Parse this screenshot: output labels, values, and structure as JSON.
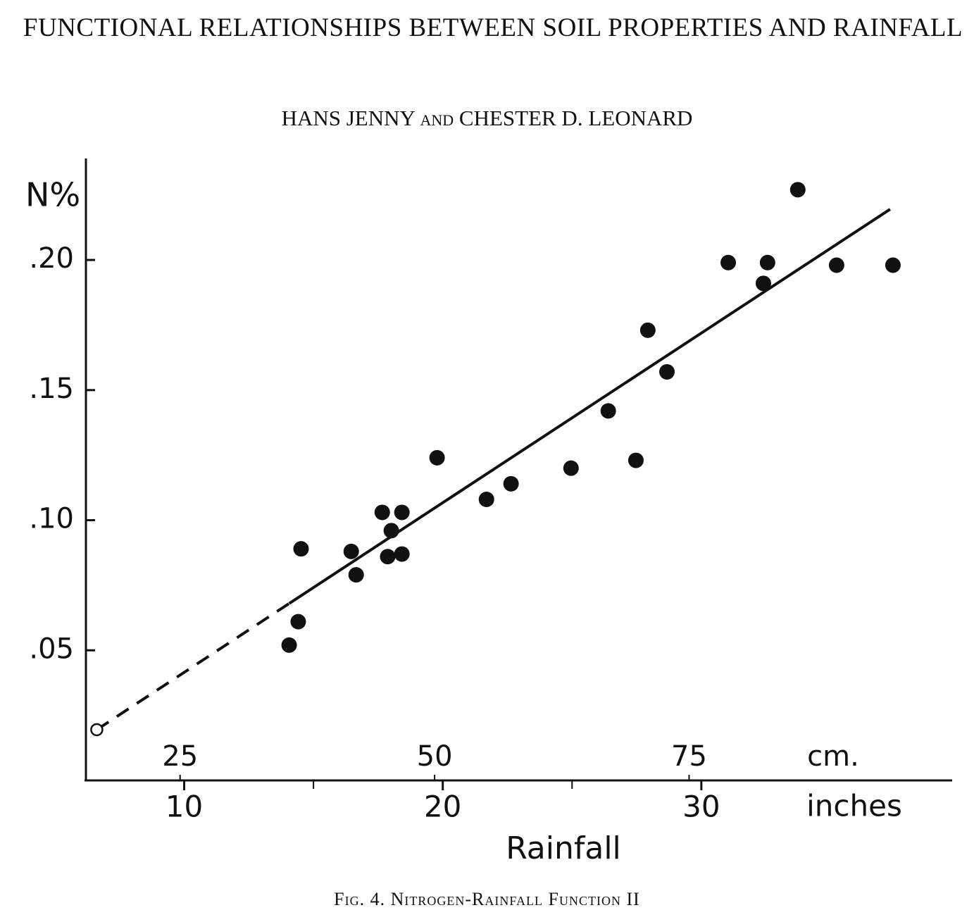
{
  "chart_data": {
    "type": "scatter",
    "title": "FUNCTIONAL RELATIONSHIPS BETWEEN SOIL PROPERTIES AND RAINFALL",
    "subtitle": "HANS JENNY and CHESTER D. LEONARD",
    "caption": "Fig. 4. Nitrogen-Rainfall Function II",
    "y_label": "N%",
    "x_label": "Rainfall",
    "x_unit_label": "inches",
    "x2_unit_label": "cm.",
    "color": "#111111",
    "x": [
      14.06,
      14.41,
      14.52,
      16.46,
      16.65,
      17.66,
      18.01,
      17.87,
      18.42,
      18.42,
      19.78,
      21.69,
      22.64,
      24.96,
      26.4,
      27.47,
      27.93,
      28.67,
      31.04,
      32.4,
      32.56,
      33.73,
      35.23,
      37.41
    ],
    "values": [
      0.052,
      0.061,
      0.089,
      0.088,
      0.079,
      0.103,
      0.096,
      0.086,
      0.103,
      0.087,
      0.124,
      0.108,
      0.114,
      0.12,
      0.142,
      0.123,
      0.173,
      0.157,
      0.199,
      0.191,
      0.199,
      0.227,
      0.198,
      0.198
    ],
    "open_point": {
      "x": 6.62,
      "y": 0.0195
    },
    "fit_line": {
      "x": [
        14.06,
        37.3
      ],
      "y": [
        0.068,
        0.2195
      ]
    },
    "extrapolation": {
      "x": [
        6.62,
        14.06
      ],
      "y": [
        0.0195,
        0.068
      ]
    },
    "xlim": [
      6.2,
      39.7
    ],
    "xticks": [
      10,
      20,
      30
    ],
    "xminor_ticks": [
      15,
      25
    ],
    "x2lim": [
      15.75,
      100.84
    ],
    "x2ticks": [
      25,
      50,
      75
    ],
    "ylim": [
      0,
      0.239
    ],
    "yticks": [
      {
        "value": 0.05,
        "label": ".05"
      },
      {
        "value": 0.1,
        "label": ".10"
      },
      {
        "value": 0.15,
        "label": ".15"
      },
      {
        "value": 0.2,
        "label": ".20"
      }
    ]
  }
}
